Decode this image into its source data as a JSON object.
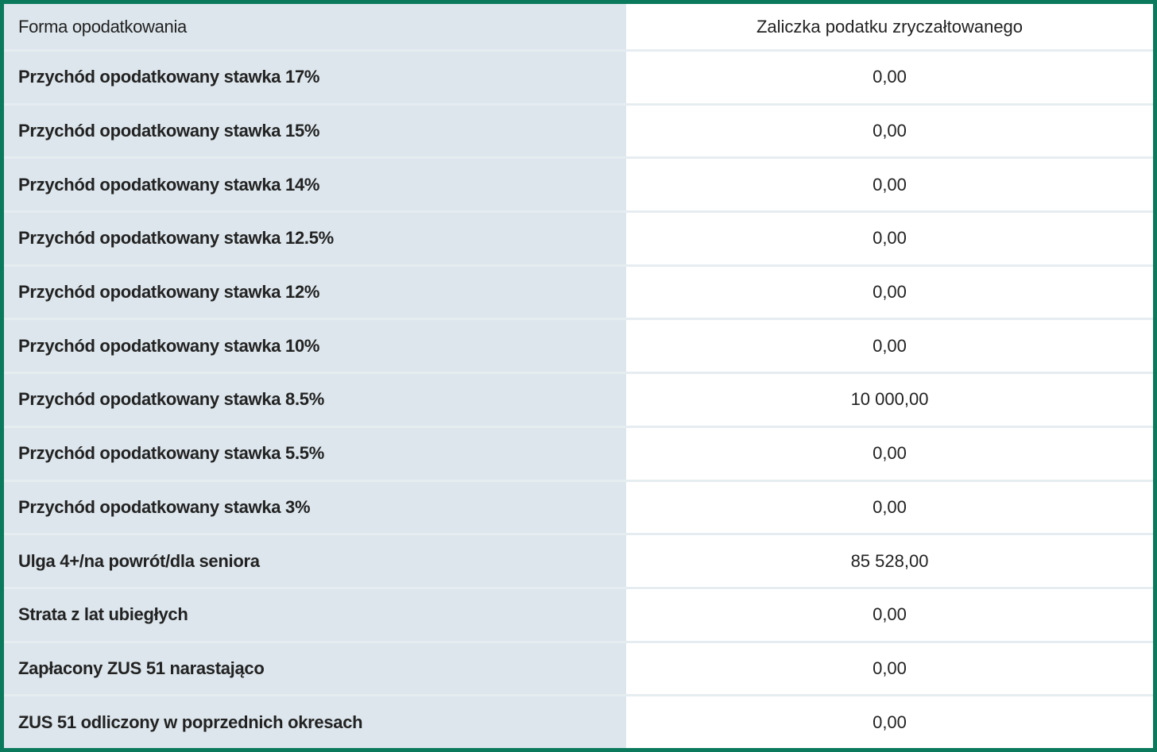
{
  "header": {
    "label": "Forma opodatkowania",
    "value": "Zaliczka podatku zryczałtowanego"
  },
  "rows": [
    [
      "Przychód opodatkowany stawka 17%",
      "0,00"
    ],
    [
      "Przychód opodatkowany stawka 15%",
      "0,00"
    ],
    [
      "Przychód opodatkowany stawka 14%",
      "0,00"
    ],
    [
      "Przychód opodatkowany stawka 12.5%",
      "0,00"
    ],
    [
      "Przychód opodatkowany stawka 12%",
      "0,00"
    ],
    [
      "Przychód opodatkowany stawka 10%",
      "0,00"
    ],
    [
      "Przychód opodatkowany stawka 8.5%",
      "10 000,00"
    ],
    [
      "Przychód opodatkowany stawka 5.5%",
      "0,00"
    ],
    [
      "Przychód opodatkowany stawka 3%",
      "0,00"
    ],
    [
      "Ulga 4+/na powrót/dla seniora",
      "85 528,00"
    ],
    [
      "Strata z lat ubiegłych",
      "0,00"
    ],
    [
      "Zapłacony ZUS 51 narastająco",
      "0,00"
    ],
    [
      "ZUS 51 odliczony w poprzednich okresach",
      "0,00"
    ]
  ]
}
